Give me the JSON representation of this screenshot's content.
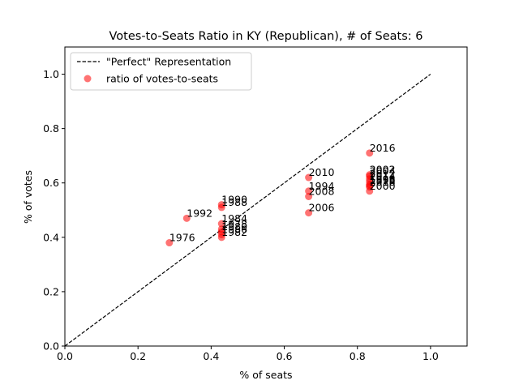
{
  "chart_data": {
    "type": "scatter",
    "title": "Votes-to-Seats Ratio in KY (Republican), # of Seats: 6",
    "xlabel": "% of seats",
    "ylabel": "% of votes",
    "xlim": [
      0.0,
      1.1
    ],
    "ylim": [
      0.0,
      1.1
    ],
    "xticks": [
      0.0,
      0.2,
      0.4,
      0.6,
      0.8,
      1.0
    ],
    "yticks": [
      0.0,
      0.2,
      0.4,
      0.6,
      0.8,
      1.0
    ],
    "xtick_labels": [
      "0.0",
      "0.2",
      "0.4",
      "0.6",
      "0.8",
      "1.0"
    ],
    "ytick_labels": [
      "0.0",
      "0.2",
      "0.4",
      "0.6",
      "0.8",
      "1.0"
    ],
    "grid": false,
    "legend_position": "top-left",
    "legend": [
      {
        "label": "\"Perfect\" Representation",
        "marker": "dashed-line",
        "color": "#000000"
      },
      {
        "label": "ratio of votes-to-seats",
        "marker": "circle",
        "color": "#ff0000"
      }
    ],
    "reference_line": {
      "x": [
        0,
        1
      ],
      "y": [
        0,
        1
      ],
      "style": "dashed",
      "color": "#000000"
    },
    "series": [
      {
        "name": "ratio of votes-to-seats",
        "color": "#ff0000",
        "points": [
          {
            "x": 0.2857,
            "y": 0.38,
            "label": "1976"
          },
          {
            "x": 0.3333,
            "y": 0.47,
            "label": "1992"
          },
          {
            "x": 0.4286,
            "y": 0.52,
            "label": "1990"
          },
          {
            "x": 0.4286,
            "y": 0.51,
            "label": "1988"
          },
          {
            "x": 0.4286,
            "y": 0.45,
            "label": "1984"
          },
          {
            "x": 0.4286,
            "y": 0.43,
            "label": "1978"
          },
          {
            "x": 0.4286,
            "y": 0.42,
            "label": "1980"
          },
          {
            "x": 0.4286,
            "y": 0.41,
            "label": "1986"
          },
          {
            "x": 0.4286,
            "y": 0.4,
            "label": "1982"
          },
          {
            "x": 0.6667,
            "y": 0.62,
            "label": "2010"
          },
          {
            "x": 0.6667,
            "y": 0.57,
            "label": "1994"
          },
          {
            "x": 0.6667,
            "y": 0.55,
            "label": "2008"
          },
          {
            "x": 0.6667,
            "y": 0.49,
            "label": "2006"
          },
          {
            "x": 0.8333,
            "y": 0.71,
            "label": "2016"
          },
          {
            "x": 0.8333,
            "y": 0.63,
            "label": "2002"
          },
          {
            "x": 0.8333,
            "y": 0.625,
            "label": "2004"
          },
          {
            "x": 0.8333,
            "y": 0.615,
            "label": "2012"
          },
          {
            "x": 0.8333,
            "y": 0.605,
            "label": "2014"
          },
          {
            "x": 0.8333,
            "y": 0.595,
            "label": "1996"
          },
          {
            "x": 0.8333,
            "y": 0.59,
            "label": "1998"
          },
          {
            "x": 0.8333,
            "y": 0.585,
            "label": "2018"
          },
          {
            "x": 0.8333,
            "y": 0.57,
            "label": "2000"
          }
        ]
      }
    ]
  }
}
